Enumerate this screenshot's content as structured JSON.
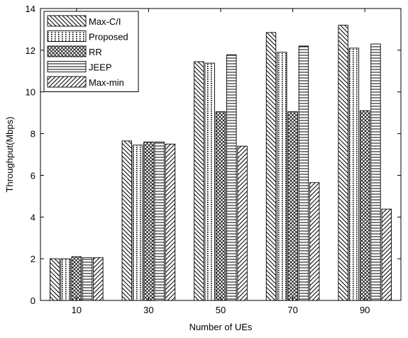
{
  "chart_data": {
    "type": "bar",
    "title": "",
    "xlabel": "Number of UEs",
    "ylabel": "Throughput(Mbps)",
    "categories": [
      "10",
      "30",
      "50",
      "70",
      "90"
    ],
    "ylim": [
      0,
      14
    ],
    "yticks": [
      0,
      2,
      4,
      6,
      8,
      10,
      12,
      14
    ],
    "grid": false,
    "legend_position": "top-left",
    "series": [
      {
        "name": "Max-C/I",
        "pattern": "diagonal-back",
        "values": [
          2.0,
          7.65,
          11.45,
          12.85,
          13.2
        ]
      },
      {
        "name": "Proposed",
        "pattern": "dotted",
        "values": [
          2.0,
          7.45,
          11.38,
          11.9,
          12.1
        ]
      },
      {
        "name": "RR",
        "pattern": "crosshatch",
        "values": [
          2.1,
          7.6,
          9.05,
          9.05,
          9.1
        ]
      },
      {
        "name": "JEEP",
        "pattern": "horizontal-lines",
        "values": [
          2.05,
          7.6,
          11.78,
          12.2,
          12.3
        ]
      },
      {
        "name": "Max-min",
        "pattern": "diagonal-forward",
        "values": [
          2.05,
          7.5,
          7.4,
          5.65,
          4.38
        ]
      }
    ]
  }
}
